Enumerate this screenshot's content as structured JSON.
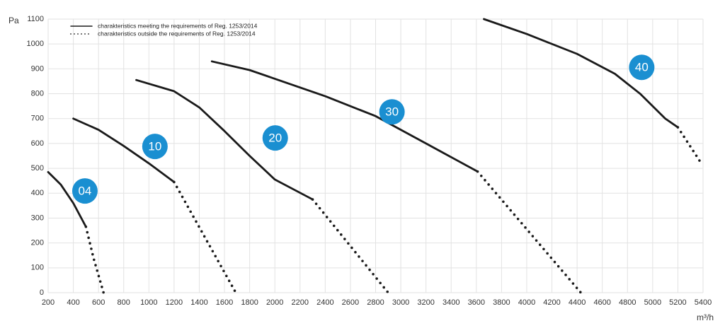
{
  "chart_data": {
    "type": "line",
    "y_label": "Pa",
    "x_label": "m³/h",
    "xlim": [
      200,
      5400
    ],
    "xticks": [
      200,
      400,
      600,
      800,
      1000,
      1200,
      1400,
      1600,
      1800,
      2000,
      2200,
      2400,
      2600,
      2800,
      3000,
      3200,
      3400,
      3600,
      3800,
      4000,
      4200,
      4400,
      4600,
      4800,
      5000,
      5200,
      5400
    ],
    "ylim": [
      0,
      1100
    ],
    "yticks": [
      0,
      100,
      200,
      300,
      400,
      500,
      600,
      700,
      800,
      900,
      1000,
      1100
    ],
    "grid": true,
    "legend": [
      {
        "label": "charakteristics meeting the requirements of Reg. 1253/2014",
        "style": "solid"
      },
      {
        "label": "charakteristics outside the requirements of Reg. 1253/2014",
        "style": "dotted"
      }
    ],
    "line_color": "#1a1a1a",
    "badge_color": "#1a8fd1",
    "series": [
      {
        "name": "04",
        "label_at": [
          492,
          409
        ],
        "solid": {
          "x": [
            200,
            300,
            400,
            500
          ],
          "values": [
            485,
            435,
            360,
            265
          ]
        },
        "dotted": {
          "x": [
            500,
            560,
            640
          ],
          "values": [
            265,
            140,
            0
          ]
        }
      },
      {
        "name": "10",
        "label_at": [
          1048,
          588
        ],
        "solid": {
          "x": [
            400,
            600,
            800,
            1000,
            1200
          ],
          "values": [
            700,
            655,
            590,
            520,
            445
          ]
        },
        "dotted": {
          "x": [
            1200,
            1690
          ],
          "values": [
            445,
            0
          ]
        }
      },
      {
        "name": "20",
        "label_at": [
          2003,
          622
        ],
        "solid": {
          "x": [
            900,
            1200,
            1400,
            1600,
            1800,
            2000,
            2300
          ],
          "values": [
            855,
            810,
            745,
            650,
            550,
            455,
            375
          ]
        },
        "dotted": {
          "x": [
            2300,
            2900
          ],
          "values": [
            375,
            0
          ]
        }
      },
      {
        "name": "30",
        "label_at": [
          2930,
          727
        ],
        "solid": {
          "x": [
            1500,
            1800,
            2000,
            2400,
            2800,
            3200,
            3610
          ],
          "values": [
            930,
            895,
            860,
            790,
            710,
            600,
            487
          ]
        },
        "dotted": {
          "x": [
            3610,
            4430
          ],
          "values": [
            487,
            0
          ]
        }
      },
      {
        "name": "40",
        "label_at": [
          4913,
          906
        ],
        "solid": {
          "x": [
            3660,
            4000,
            4400,
            4700,
            4900,
            5100,
            5200
          ],
          "values": [
            1100,
            1040,
            960,
            880,
            800,
            700,
            665
          ]
        },
        "dotted": {
          "x": [
            5200,
            5390
          ],
          "values": [
            665,
            517
          ]
        }
      }
    ]
  }
}
